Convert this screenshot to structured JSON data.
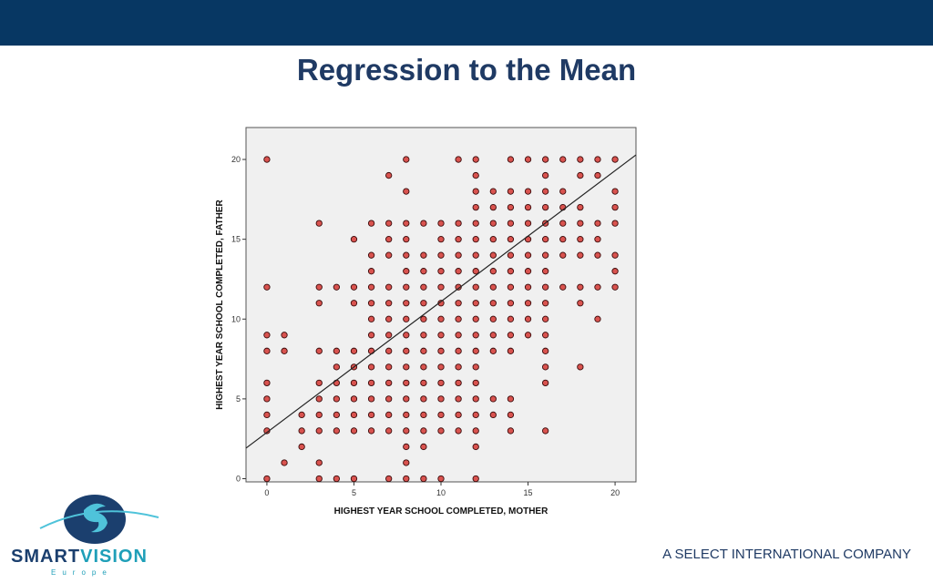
{
  "slide": {
    "title": "Regression to the Mean",
    "footer_company": "A SELECT INTERNATIONAL COMPANY",
    "logo_smart": "SMART",
    "logo_vision": "VISION",
    "logo_sub": "Europe"
  },
  "colors": {
    "top_bar": "#073763",
    "title": "#1f3a64",
    "plot_bg": "#f0f0f0",
    "point_fill": "#d9534f",
    "point_stroke": "#3a0a0a",
    "fit_line": "#222222"
  },
  "icons": {
    "logo": "smartvision-logo-icon"
  },
  "chart_data": {
    "type": "scatter",
    "title": "",
    "xlabel": "HIGHEST YEAR SCHOOL COMPLETED, MOTHER",
    "ylabel": "HIGHEST YEAR SCHOOL COMPLETED, FATHER",
    "xlim": [
      -1.2,
      21.2
    ],
    "ylim": [
      -0.2,
      22
    ],
    "xticks": [
      0,
      5,
      10,
      15,
      20
    ],
    "yticks": [
      0,
      5,
      10,
      15,
      20
    ],
    "grid": false,
    "legend": "none",
    "fit_line": {
      "intercept": 2.9,
      "slope": 0.82
    },
    "x_columns": [
      0,
      1,
      2,
      3,
      4,
      5,
      6,
      7,
      8,
      9,
      10,
      11,
      12,
      13,
      14,
      15,
      16,
      17,
      18,
      19,
      20
    ],
    "y_by_x": [
      [
        0,
        3,
        4,
        5,
        6,
        8,
        9,
        12,
        20
      ],
      [
        1,
        8,
        9
      ],
      [
        2,
        3,
        4
      ],
      [
        0,
        1,
        3,
        4,
        5,
        6,
        8,
        11,
        12,
        16
      ],
      [
        0,
        3,
        4,
        5,
        6,
        7,
        8,
        12
      ],
      [
        0,
        3,
        4,
        5,
        6,
        7,
        8,
        11,
        12,
        15
      ],
      [
        3,
        4,
        5,
        6,
        7,
        8,
        9,
        10,
        11,
        12,
        13,
        14,
        16
      ],
      [
        0,
        3,
        4,
        5,
        6,
        7,
        8,
        9,
        10,
        11,
        12,
        14,
        15,
        16,
        19
      ],
      [
        0,
        1,
        2,
        3,
        4,
        5,
        6,
        7,
        8,
        9,
        10,
        11,
        12,
        13,
        14,
        15,
        16,
        18,
        20
      ],
      [
        0,
        2,
        3,
        4,
        5,
        6,
        7,
        8,
        9,
        10,
        11,
        12,
        13,
        14,
        16
      ],
      [
        0,
        3,
        4,
        5,
        6,
        7,
        8,
        9,
        10,
        11,
        12,
        13,
        14,
        15,
        16
      ],
      [
        3,
        4,
        5,
        6,
        7,
        8,
        9,
        10,
        11,
        12,
        13,
        14,
        15,
        16,
        20
      ],
      [
        0,
        2,
        3,
        4,
        5,
        6,
        7,
        8,
        9,
        10,
        11,
        12,
        13,
        14,
        15,
        16,
        17,
        18,
        19,
        20
      ],
      [
        4,
        5,
        8,
        9,
        10,
        11,
        12,
        13,
        14,
        15,
        16,
        17,
        18
      ],
      [
        3,
        4,
        5,
        8,
        9,
        10,
        11,
        12,
        13,
        14,
        15,
        16,
        17,
        18,
        20
      ],
      [
        9,
        10,
        11,
        12,
        13,
        14,
        15,
        16,
        17,
        18,
        20
      ],
      [
        3,
        6,
        7,
        8,
        9,
        10,
        11,
        12,
        13,
        14,
        15,
        16,
        17,
        18,
        19,
        20
      ],
      [
        12,
        14,
        15,
        16,
        17,
        18,
        20
      ],
      [
        7,
        11,
        12,
        14,
        15,
        16,
        17,
        19,
        20
      ],
      [
        10,
        12,
        14,
        15,
        16,
        19,
        20
      ],
      [
        12,
        13,
        14,
        16,
        17,
        18,
        20
      ]
    ]
  }
}
